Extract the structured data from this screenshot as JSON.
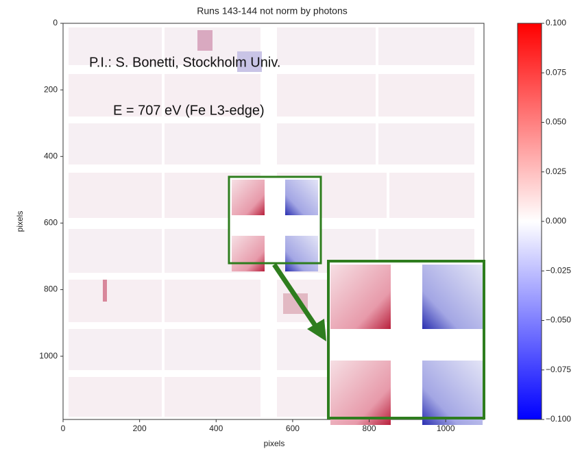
{
  "chart_data": {
    "type": "heatmap",
    "title": "Runs 143-144 not norm by photons",
    "xlabel": "pixels",
    "ylabel": "pixels",
    "xlim": [
      0,
      1100
    ],
    "xticks": [
      0,
      200,
      400,
      600,
      800,
      1000
    ],
    "ylim": [
      1190,
      0
    ],
    "yticks": [
      0,
      200,
      400,
      600,
      800,
      1000
    ],
    "colormap": [
      "#0000ff",
      "#ffffff",
      "#ff0000"
    ],
    "clim": [
      -0.1,
      0.1
    ],
    "cticks": [
      {
        "value": 0.1,
        "label": "0.100"
      },
      0.075,
      {
        "value": 0.05,
        "label": "0.050"
      },
      0.025,
      {
        "value": 0,
        "label": "0.000"
      },
      {
        "value": -0.025,
        "label": "−0.025"
      },
      {
        "value": -0.05,
        "label": "−0.050"
      },
      {
        "value": -0.075,
        "label": "−0.075"
      },
      {
        "value": -0.1,
        "label": "−0.100"
      }
    ],
    "annotations": [
      "P.I.:  S. Bonetti, Stockholm Univ.",
      "E = 707 eV (Fe L3-edge)"
    ],
    "inset_color": "#2e7d1e"
  }
}
